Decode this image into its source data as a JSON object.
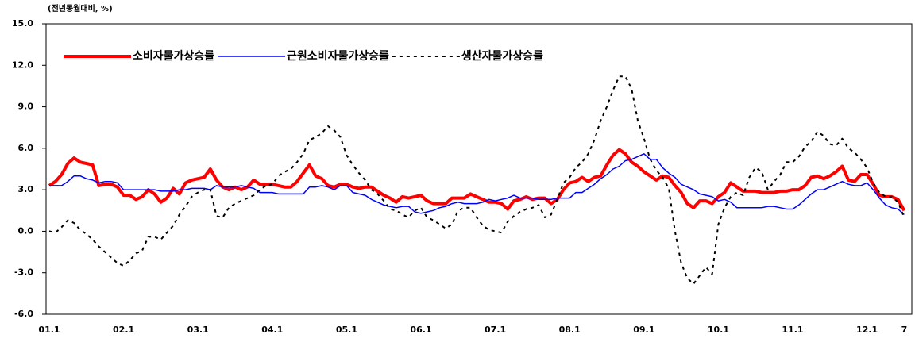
{
  "chart_data": {
    "type": "line",
    "subtitle": "(전년동월대비, %)",
    "categories": [
      "01.1",
      null,
      null,
      null,
      null,
      null,
      null,
      null,
      null,
      null,
      null,
      null,
      "02.1",
      null,
      null,
      null,
      null,
      null,
      null,
      null,
      null,
      null,
      null,
      null,
      "03.1",
      null,
      null,
      null,
      null,
      null,
      null,
      null,
      null,
      null,
      null,
      null,
      "04.1",
      null,
      null,
      null,
      null,
      null,
      null,
      null,
      null,
      null,
      null,
      null,
      "05.1",
      null,
      null,
      null,
      null,
      null,
      null,
      null,
      null,
      null,
      null,
      null,
      "06.1",
      null,
      null,
      null,
      null,
      null,
      null,
      null,
      null,
      null,
      null,
      null,
      "07.1",
      null,
      null,
      null,
      null,
      null,
      null,
      null,
      null,
      null,
      null,
      null,
      "08.1",
      null,
      null,
      null,
      null,
      null,
      null,
      null,
      null,
      null,
      null,
      null,
      "09.1",
      null,
      null,
      null,
      null,
      null,
      null,
      null,
      null,
      null,
      null,
      null,
      "10.1",
      null,
      null,
      null,
      null,
      null,
      null,
      null,
      null,
      null,
      null,
      null,
      "11.1",
      null,
      null,
      null,
      null,
      null,
      null,
      null,
      null,
      null,
      null,
      null,
      "12.1",
      null,
      null,
      null,
      null,
      null,
      "7"
    ],
    "series": [
      {
        "name": "소비자물가상승률",
        "color": "#ff0000",
        "width": 4,
        "dash": false,
        "values": [
          3.3,
          3.6,
          4.1,
          4.9,
          5.3,
          5.0,
          4.9,
          4.8,
          3.3,
          3.4,
          3.4,
          3.2,
          2.6,
          2.6,
          2.3,
          2.5,
          3.0,
          2.7,
          2.1,
          2.4,
          3.1,
          2.7,
          3.5,
          3.7,
          3.8,
          3.9,
          4.5,
          3.7,
          3.2,
          3.0,
          3.2,
          3.0,
          3.2,
          3.7,
          3.4,
          3.4,
          3.4,
          3.3,
          3.2,
          3.2,
          3.6,
          4.2,
          4.8,
          4.0,
          3.8,
          3.3,
          3.2,
          3.4,
          3.4,
          3.2,
          3.1,
          3.2,
          3.2,
          2.9,
          2.6,
          2.4,
          2.1,
          2.5,
          2.4,
          2.5,
          2.6,
          2.2,
          2.0,
          2.0,
          2.0,
          2.4,
          2.4,
          2.4,
          2.7,
          2.5,
          2.3,
          2.1,
          2.1,
          2.0,
          1.6,
          2.2,
          2.3,
          2.5,
          2.3,
          2.4,
          2.4,
          2.0,
          2.3,
          3.0,
          3.5,
          3.6,
          3.9,
          3.6,
          3.9,
          4.0,
          4.8,
          5.5,
          5.9,
          5.6,
          5.0,
          4.7,
          4.3,
          4.0,
          3.7,
          4.0,
          3.9,
          3.3,
          2.8,
          2.0,
          1.7,
          2.2,
          2.2,
          2.0,
          2.5,
          2.8,
          3.5,
          3.2,
          2.9,
          2.9,
          2.9,
          2.8,
          2.8,
          2.8,
          2.9,
          2.9,
          3.0,
          3.0,
          3.3,
          3.9,
          4.0,
          3.8,
          4.0,
          4.3,
          4.7,
          3.7,
          3.6,
          4.1,
          4.1,
          3.4,
          2.6,
          2.5,
          2.5,
          2.3,
          1.5
        ]
      },
      {
        "name": "근원소비자물가상승률",
        "color": "#0000ff",
        "width": 1.5,
        "dash": false,
        "values": [
          3.3,
          3.3,
          3.3,
          3.6,
          4.0,
          4.0,
          3.8,
          3.7,
          3.5,
          3.6,
          3.6,
          3.5,
          3.0,
          3.0,
          3.0,
          3.0,
          3.0,
          3.0,
          2.9,
          2.9,
          2.9,
          3.0,
          3.0,
          3.1,
          3.1,
          3.1,
          3.0,
          3.3,
          3.2,
          3.2,
          3.2,
          3.3,
          3.2,
          3.1,
          2.8,
          2.8,
          2.8,
          2.7,
          2.7,
          2.7,
          2.7,
          2.7,
          3.2,
          3.2,
          3.3,
          3.2,
          3.0,
          3.3,
          3.3,
          2.8,
          2.7,
          2.6,
          2.3,
          2.1,
          1.9,
          1.8,
          1.7,
          1.8,
          1.8,
          1.4,
          1.3,
          1.4,
          1.5,
          1.7,
          1.8,
          2.0,
          2.1,
          2.0,
          2.0,
          2.0,
          2.1,
          2.3,
          2.2,
          2.3,
          2.4,
          2.6,
          2.4,
          2.4,
          2.4,
          2.3,
          2.3,
          2.3,
          2.4,
          2.4,
          2.4,
          2.8,
          2.8,
          3.1,
          3.4,
          3.8,
          4.1,
          4.5,
          4.7,
          5.1,
          5.2,
          5.4,
          5.6,
          5.2,
          5.2,
          4.6,
          4.2,
          3.9,
          3.4,
          3.2,
          3.0,
          2.7,
          2.6,
          2.5,
          2.2,
          2.3,
          2.1,
          1.7,
          1.7,
          1.7,
          1.7,
          1.7,
          1.8,
          1.8,
          1.7,
          1.6,
          1.6,
          1.9,
          2.3,
          2.7,
          3.0,
          3.0,
          3.2,
          3.4,
          3.6,
          3.4,
          3.3,
          3.3,
          3.5,
          3.0,
          2.4,
          1.9,
          1.7,
          1.6,
          1.2
        ]
      },
      {
        "name": "생산자물가상승률",
        "color": "#000000",
        "width": 2,
        "dash": true,
        "values": [
          0.0,
          -0.1,
          0.3,
          0.8,
          0.6,
          0.1,
          -0.2,
          -0.6,
          -1.1,
          -1.5,
          -1.9,
          -2.3,
          -2.5,
          -2.1,
          -1.6,
          -1.4,
          -0.4,
          -0.4,
          -0.6,
          -0.1,
          0.4,
          1.2,
          1.8,
          2.5,
          2.8,
          3.0,
          3.0,
          1.1,
          1.0,
          1.7,
          2.0,
          2.2,
          2.4,
          2.6,
          3.0,
          3.3,
          3.4,
          4.0,
          4.3,
          4.5,
          5.0,
          5.6,
          6.6,
          6.8,
          7.1,
          7.6,
          7.3,
          6.8,
          5.5,
          4.8,
          4.2,
          3.7,
          3.0,
          2.7,
          2.2,
          1.6,
          1.5,
          1.2,
          1.0,
          1.5,
          1.7,
          1.0,
          0.8,
          0.5,
          0.2,
          0.5,
          1.5,
          1.7,
          1.7,
          1.0,
          0.4,
          0.1,
          0.0,
          -0.1,
          0.7,
          1.1,
          1.4,
          1.6,
          1.7,
          1.9,
          1.0,
          1.2,
          2.3,
          3.5,
          3.9,
          4.6,
          5.0,
          5.6,
          6.6,
          8.0,
          9.0,
          10.2,
          11.2,
          11.2,
          10.3,
          8.0,
          6.7,
          5.2,
          4.4,
          3.9,
          3.1,
          0.0,
          -2.3,
          -3.4,
          -3.8,
          -3.2,
          -2.6,
          -3.1,
          0.5,
          1.7,
          2.5,
          2.8,
          2.6,
          3.9,
          4.6,
          4.3,
          3.0,
          3.6,
          4.1,
          5.0,
          5.0,
          5.4,
          6.1,
          6.5,
          7.2,
          6.9,
          6.3,
          6.2,
          6.7,
          6.0,
          5.7,
          5.2,
          4.6,
          3.5,
          2.8,
          2.5,
          2.5,
          2.1,
          1.0
        ]
      }
    ],
    "ylim": [
      -6,
      15
    ],
    "yticks": [
      {
        "value": -6,
        "label": "-6.0"
      },
      {
        "value": -3,
        "label": "-3.0"
      },
      {
        "value": 0,
        "label": "0.0"
      },
      {
        "value": 3,
        "label": "3.0"
      },
      {
        "value": 6,
        "label": "6.0"
      },
      {
        "value": 9,
        "label": "9.0"
      },
      {
        "value": 12,
        "label": "12.0"
      },
      {
        "value": 15,
        "label": "15.0"
      }
    ],
    "grid": false,
    "legend": "top-left"
  }
}
